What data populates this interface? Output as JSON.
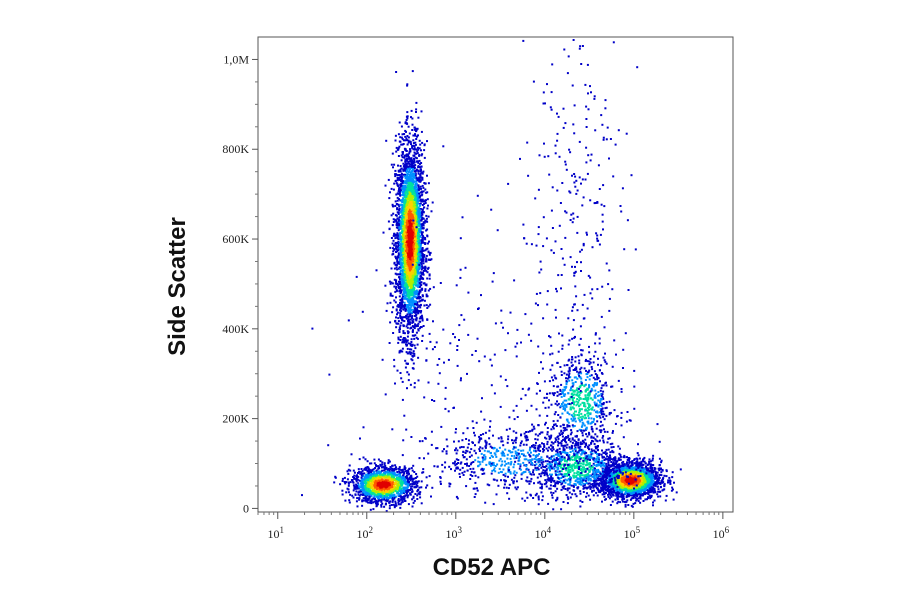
{
  "chart_data": {
    "type": "scatter",
    "subtype": "flow-cytometry density dot plot",
    "xlabel": "CD52 APC",
    "ylabel": "Side Scatter",
    "x_scale": "log",
    "xlim": [
      6,
      1300000
    ],
    "ylim": [
      -8000,
      1050000
    ],
    "x_ticks": [
      {
        "value": 10,
        "base": "10",
        "exp": "1"
      },
      {
        "value": 100,
        "base": "10",
        "exp": "2"
      },
      {
        "value": 1000,
        "base": "10",
        "exp": "3"
      },
      {
        "value": 10000,
        "base": "10",
        "exp": "4"
      },
      {
        "value": 100000,
        "base": "10",
        "exp": "5"
      },
      {
        "value": 1000000,
        "base": "10",
        "exp": "6"
      }
    ],
    "y_ticks": [
      {
        "value": 0,
        "label": "0"
      },
      {
        "value": 200000,
        "label": "200K"
      },
      {
        "value": 400000,
        "label": "400K"
      },
      {
        "value": 600000,
        "label": "600K"
      },
      {
        "value": 800000,
        "label": "800K"
      },
      {
        "value": 1000000,
        "label": "1,0M"
      }
    ],
    "color_scale": [
      "#0000c8",
      "#0090ff",
      "#00e0a0",
      "#b0f000",
      "#ffd000",
      "#ff5a00",
      "#e00000"
    ],
    "populations": [
      {
        "x_center": 300,
        "y_center": 600000,
        "x_spread_log": 0.08,
        "y_spread": 105000,
        "count": 3600,
        "peak_color": "#e00000"
      },
      {
        "x_center": 150,
        "y_center": 55000,
        "x_spread_log": 0.18,
        "y_spread": 20000,
        "count": 1500,
        "peak_color": "#e00000"
      },
      {
        "x_center": 90000,
        "y_center": 65000,
        "x_spread_log": 0.17,
        "y_spread": 20000,
        "count": 2000,
        "peak_color": "#e00000"
      },
      {
        "x_center": 22000,
        "y_center": 95000,
        "x_spread_log": 0.28,
        "y_spread": 35000,
        "count": 900,
        "peak_color": "#00e0a0"
      },
      {
        "x_center": 25000,
        "y_center": 240000,
        "x_spread_log": 0.2,
        "y_spread": 55000,
        "count": 600,
        "peak_color": "#00e0a0"
      },
      {
        "x_center": 4000,
        "y_center": 110000,
        "x_spread_log": 0.45,
        "y_spread": 35000,
        "count": 500,
        "peak_color": "#0090ff"
      },
      {
        "x_center": 20000,
        "y_center": 650000,
        "x_spread_log": 0.3,
        "y_spread": 250000,
        "count": 260,
        "peak_color": "#0000c8"
      },
      {
        "x_center": 2000,
        "y_center": 250000,
        "x_spread_log": 0.8,
        "y_spread": 200000,
        "count": 250,
        "peak_color": "#0000c8"
      }
    ],
    "grid": false,
    "legend": "none"
  }
}
